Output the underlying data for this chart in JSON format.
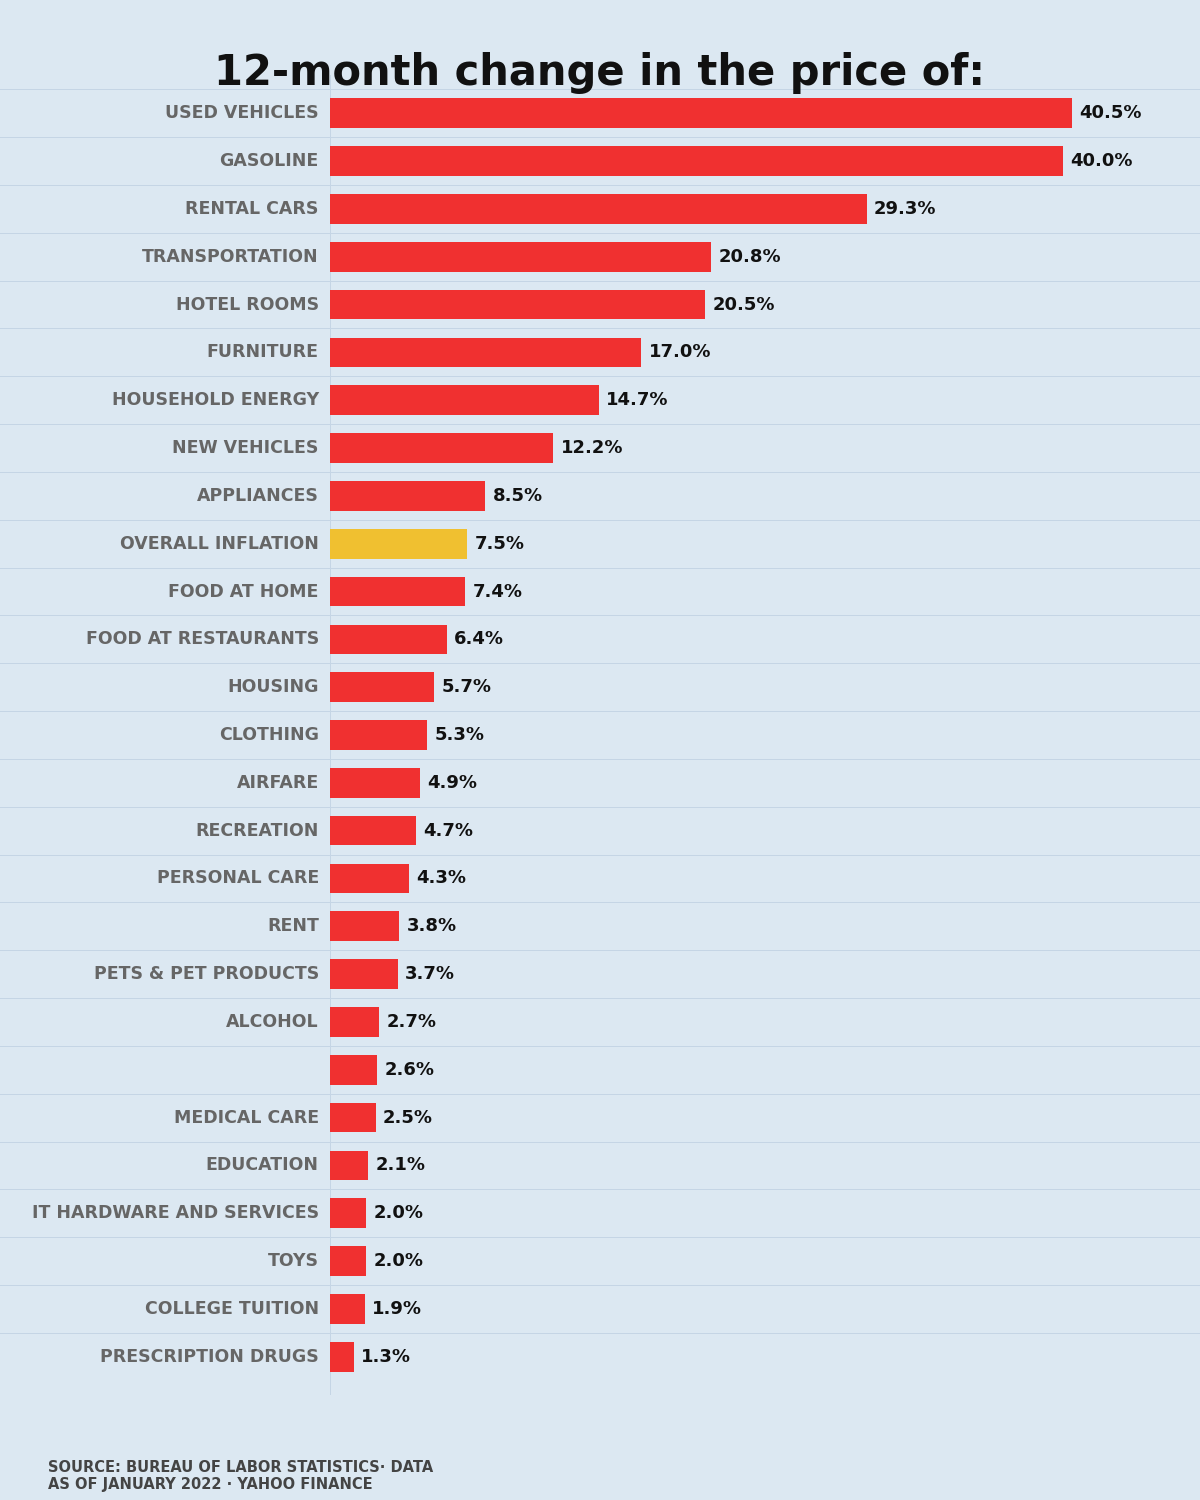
{
  "title": "12-month change in the price of:",
  "categories": [
    "USED VEHICLES",
    "GASOLINE",
    "RENTAL CARS",
    "TRANSPORTATION",
    "HOTEL ROOMS",
    "FURNITURE",
    "HOUSEHOLD ENERGY",
    "NEW VEHICLES",
    "APPLIANCES",
    "OVERALL INFLATION",
    "FOOD AT HOME",
    "FOOD AT RESTAURANTS",
    "HOUSING",
    "CLOTHING",
    "AIRFARE",
    "RECREATION",
    "PERSONAL CARE",
    "RENT",
    "PETS & PET PRODUCTS",
    "ALCOHOL",
    "",
    "MEDICAL CARE",
    "EDUCATION",
    "IT HARDWARE AND SERVICES",
    "TOYS",
    "COLLEGE TUITION",
    "PRESCRIPTION DRUGS"
  ],
  "values": [
    40.5,
    40.0,
    29.3,
    20.8,
    20.5,
    17.0,
    14.7,
    12.2,
    8.5,
    7.5,
    7.4,
    6.4,
    5.7,
    5.3,
    4.9,
    4.7,
    4.3,
    3.8,
    3.7,
    2.7,
    2.6,
    2.5,
    2.1,
    2.0,
    2.0,
    1.9,
    1.3
  ],
  "bar_colors": [
    "#f03030",
    "#f03030",
    "#f03030",
    "#f03030",
    "#f03030",
    "#f03030",
    "#f03030",
    "#f03030",
    "#f03030",
    "#f0c030",
    "#f03030",
    "#f03030",
    "#f03030",
    "#f03030",
    "#f03030",
    "#f03030",
    "#f03030",
    "#f03030",
    "#f03030",
    "#f03030",
    "#f03030",
    "#f03030",
    "#f03030",
    "#f03030",
    "#f03030",
    "#f03030",
    "#f03030"
  ],
  "value_labels": [
    "40.5%",
    "40.0%",
    "29.3%",
    "20.8%",
    "20.5%",
    "17.0%",
    "14.7%",
    "12.2%",
    "8.5%",
    "7.5%",
    "7.4%",
    "6.4%",
    "5.7%",
    "5.3%",
    "4.9%",
    "4.7%",
    "4.3%",
    "3.8%",
    "3.7%",
    "2.7%",
    "2.6%",
    "2.5%",
    "2.1%",
    "2.0%",
    "2.0%",
    "1.9%",
    "1.3%"
  ],
  "background_color": "#dce8f2",
  "title_fontsize": 30,
  "source_text": "SOURCE: BUREAU OF LABOR STATISTICS· DATA\nAS OF JANUARY 2022 · YAHOO FINANCE",
  "xlim": [
    0,
    44
  ],
  "bar_height": 0.62,
  "label_fontsize": 12.5,
  "value_fontsize": 13,
  "label_color": "#666666",
  "value_color": "#111111",
  "grid_color": "#c5d5e5",
  "title_color": "#111111"
}
